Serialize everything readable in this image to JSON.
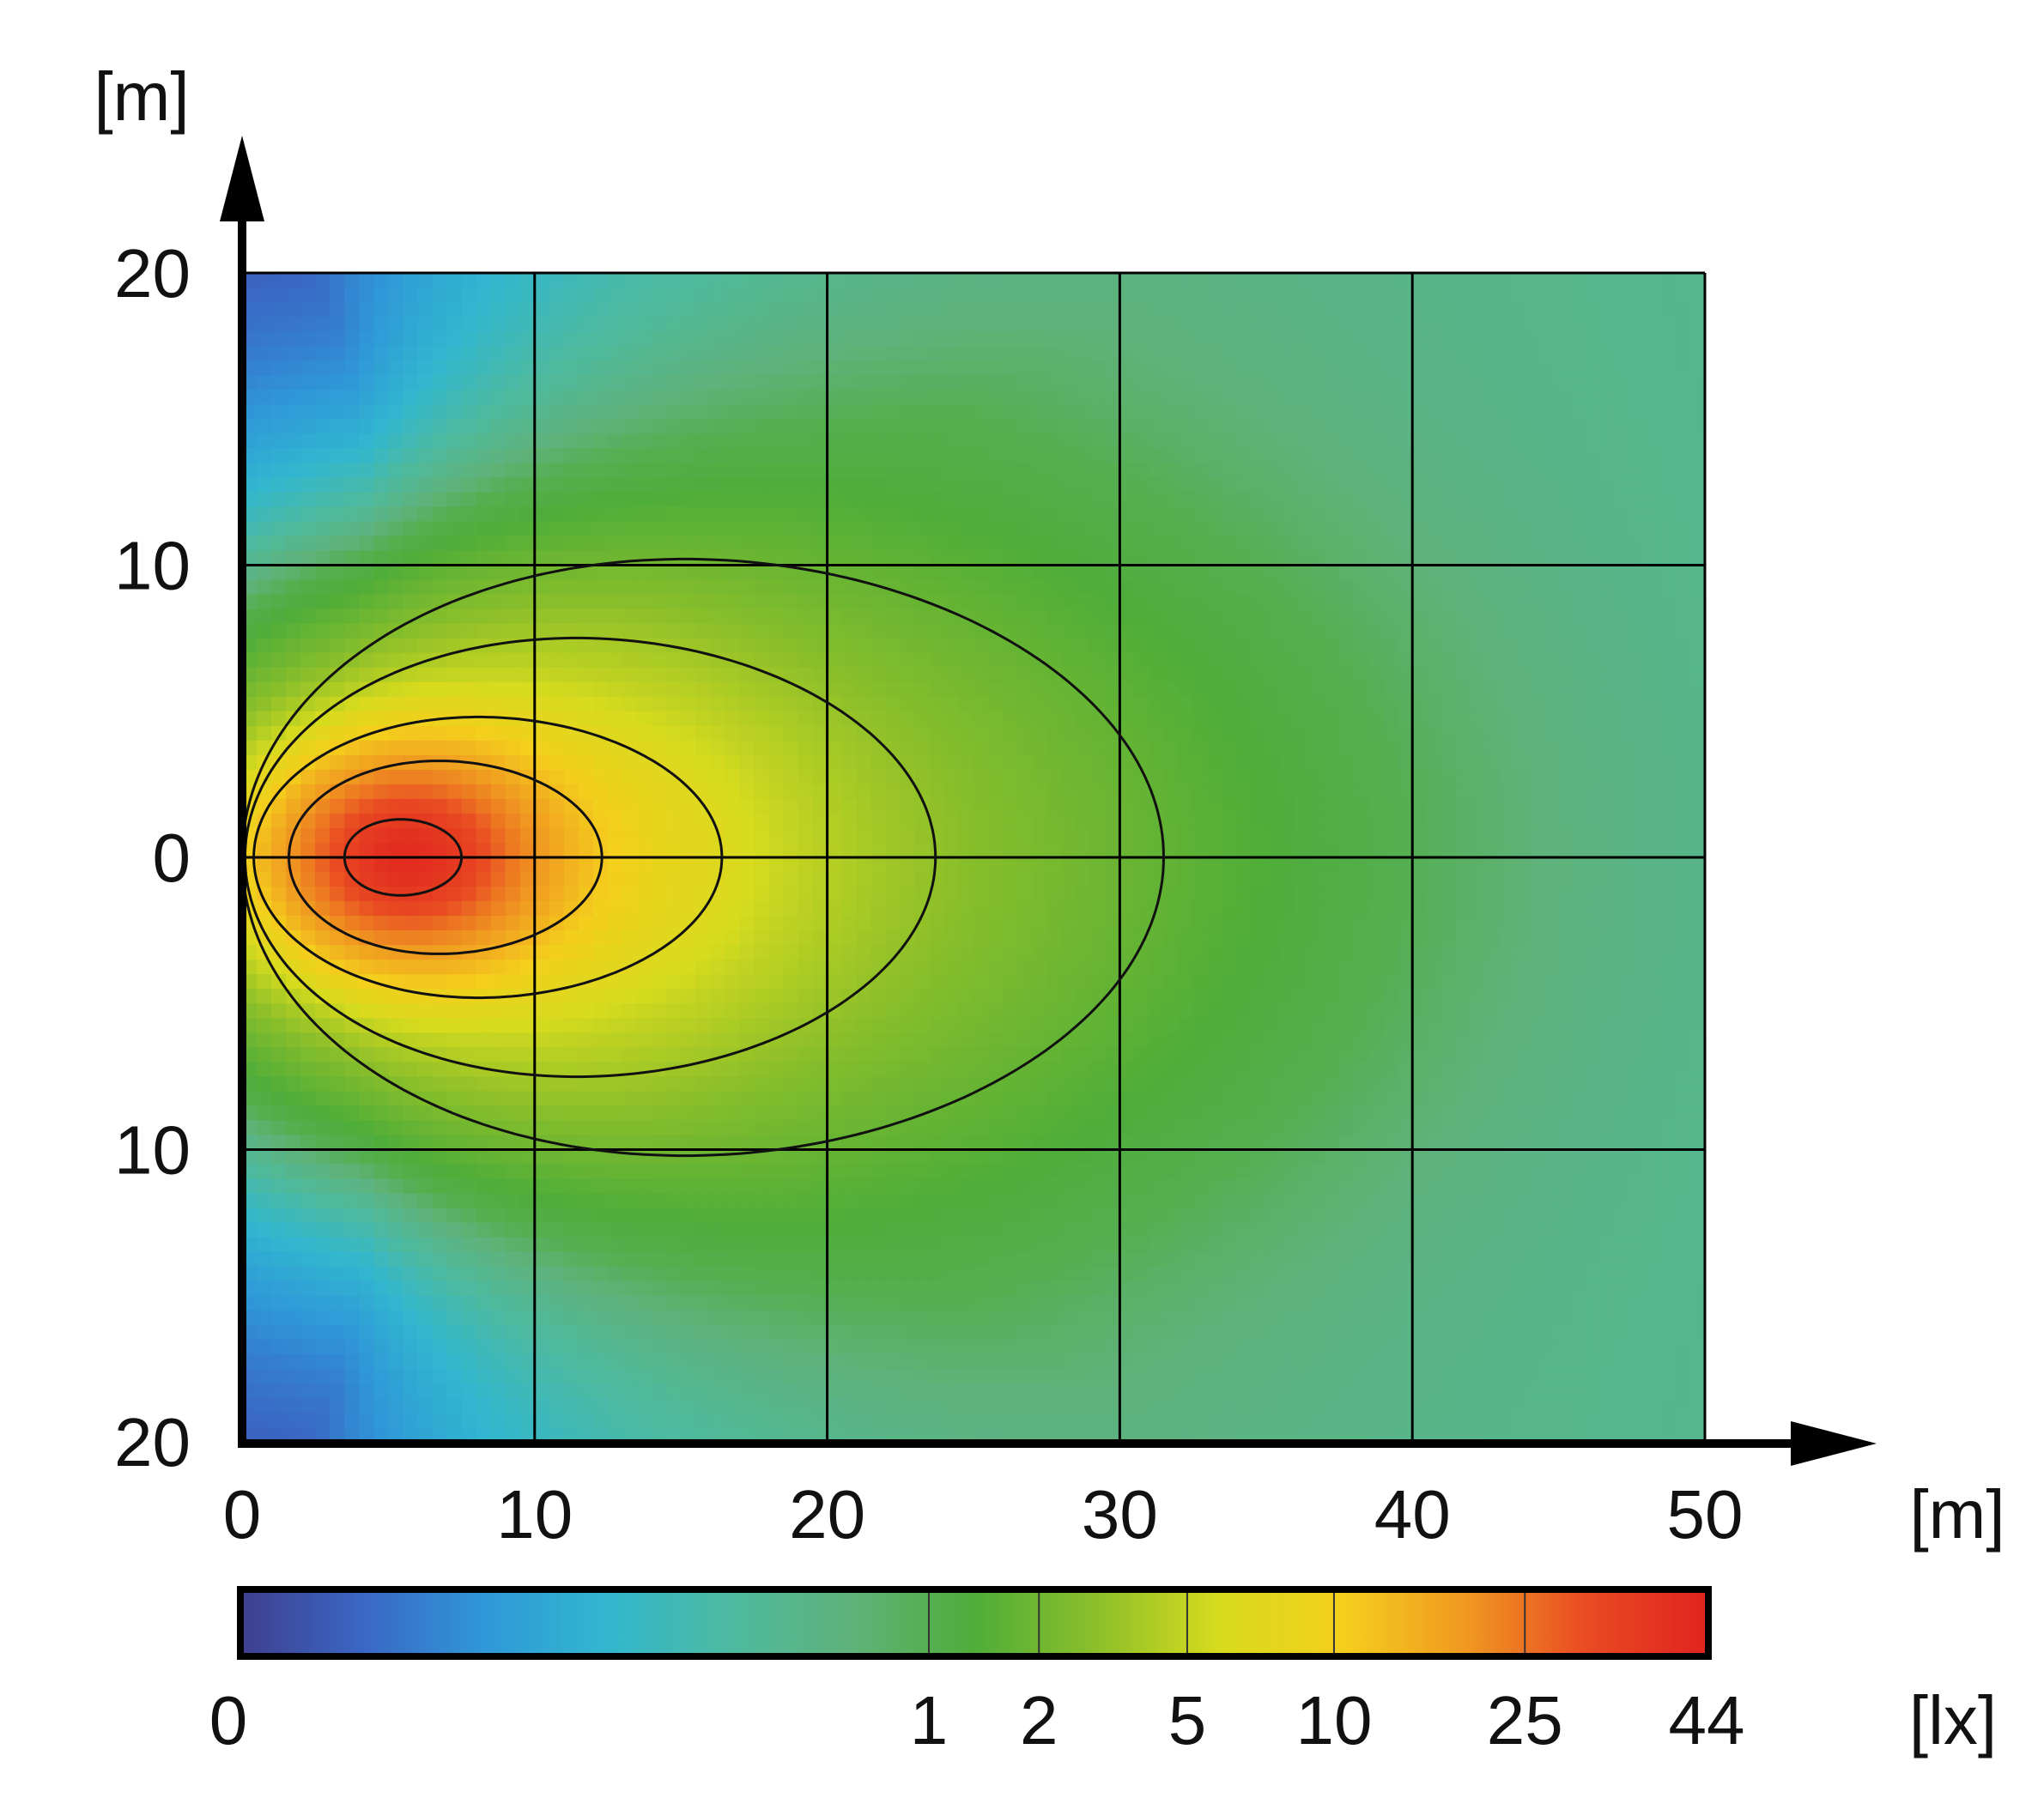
{
  "chart_data": {
    "type": "heatmap",
    "subtype": "isolux-diagram",
    "title": "",
    "xlabel": "[m]",
    "ylabel": "[m]",
    "xlim": [
      0,
      50
    ],
    "ylim": [
      -20,
      20
    ],
    "grid": true,
    "x_ticks": [
      "0",
      "10",
      "20",
      "30",
      "40",
      "50"
    ],
    "y_ticks": [
      {
        "value": 20,
        "label": "20"
      },
      {
        "value": 10,
        "label": "10"
      },
      {
        "value": 0,
        "label": "0"
      },
      {
        "value": -10,
        "label": "10"
      },
      {
        "value": -20,
        "label": "20"
      }
    ],
    "peak": {
      "x": 5.5,
      "y": 0,
      "value": 44
    },
    "isolux_contours": [
      {
        "lux": 25,
        "x_min": 3.5,
        "x_max": 7.5,
        "half_width": 1.3
      },
      {
        "lux": 10,
        "x_min": 1.6,
        "x_max": 12.3,
        "half_width": 3.3
      },
      {
        "lux": 5,
        "x_min": 0.4,
        "x_max": 16.4,
        "half_width": 4.8
      },
      {
        "lux": 2,
        "x_min": 0.1,
        "x_max": 23.7,
        "half_width": 7.5
      },
      {
        "lux": 1,
        "x_min": 0.0,
        "x_max": 31.5,
        "half_width": 10.2
      }
    ],
    "colorbar": {
      "label": "[lx]",
      "ticks": [
        "0",
        "1",
        "2",
        "5",
        "10",
        "25",
        "44"
      ],
      "tick_values": [
        0,
        1,
        2,
        5,
        10,
        25,
        44
      ],
      "colors": [
        "#3f3f8e",
        "#3a67c4",
        "#2f98d8",
        "#32b7cf",
        "#4dbaa0",
        "#5fb27a",
        "#4fad39",
        "#8cbf2a",
        "#d7db1e",
        "#f4cf1d",
        "#f09a21",
        "#e94b22",
        "#e0231f"
      ]
    }
  }
}
